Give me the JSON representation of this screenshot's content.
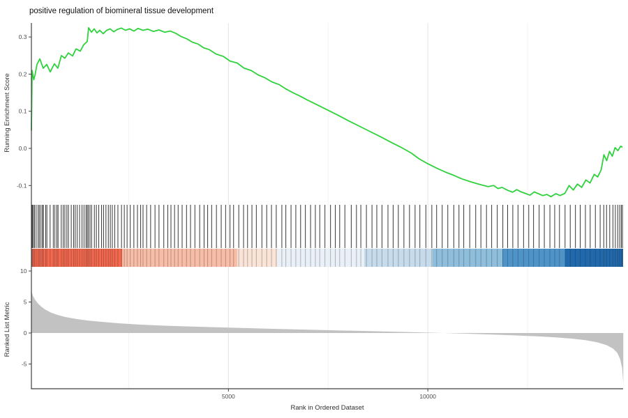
{
  "page": {
    "background": "#ffffff"
  },
  "chart_data": {
    "type": "line",
    "variant": "gsea-enrichment-plot",
    "title": "positive regulation of biomineral tissue development",
    "xlabel": "Rank in Ordered Dataset",
    "xlim": [
      0,
      14900
    ],
    "xticks": [
      {
        "value": 5000,
        "label": "5000"
      },
      {
        "value": 10000,
        "label": "10000"
      }
    ],
    "major_gridlines": [
      5000,
      10000
    ],
    "minor_gridlines": [
      2500,
      7500,
      12500
    ],
    "grid_major_color": "#e4e4e4",
    "grid_minor_color": "#f2f2f2",
    "axis_color": "#3f3f3f",
    "panels": {
      "running_score": {
        "ylabel": "Running Enrichment Score",
        "ylim": [
          -0.15,
          0.35
        ],
        "yticks": [
          {
            "value": 0.3,
            "label": "0.3"
          },
          {
            "value": 0.2,
            "label": "0.2"
          },
          {
            "value": 0.1,
            "label": "0.1"
          },
          {
            "value": 0.0,
            "label": "0.0"
          },
          {
            "value": -0.1,
            "label": "-0.1"
          }
        ],
        "line_color": "#2fd13d",
        "points": [
          [
            61,
            0.048
          ],
          [
            79,
            0.21
          ],
          [
            120,
            0.185
          ],
          [
            149,
            0.196
          ],
          [
            201,
            0.226
          ],
          [
            271,
            0.241
          ],
          [
            358,
            0.216
          ],
          [
            446,
            0.226
          ],
          [
            533,
            0.206
          ],
          [
            638,
            0.228
          ],
          [
            725,
            0.216
          ],
          [
            813,
            0.25
          ],
          [
            900,
            0.243
          ],
          [
            988,
            0.257
          ],
          [
            1093,
            0.249
          ],
          [
            1180,
            0.268
          ],
          [
            1285,
            0.262
          ],
          [
            1372,
            0.279
          ],
          [
            1460,
            0.288
          ],
          [
            1495,
            0.325
          ],
          [
            1565,
            0.313
          ],
          [
            1635,
            0.322
          ],
          [
            1705,
            0.311
          ],
          [
            1774,
            0.318
          ],
          [
            1862,
            0.309
          ],
          [
            1949,
            0.318
          ],
          [
            2037,
            0.322
          ],
          [
            2124,
            0.314
          ],
          [
            2211,
            0.32
          ],
          [
            2316,
            0.324
          ],
          [
            2421,
            0.318
          ],
          [
            2526,
            0.322
          ],
          [
            2631,
            0.316
          ],
          [
            2736,
            0.323
          ],
          [
            2858,
            0.318
          ],
          [
            2980,
            0.321
          ],
          [
            3120,
            0.315
          ],
          [
            3260,
            0.319
          ],
          [
            3400,
            0.313
          ],
          [
            3540,
            0.316
          ],
          [
            3680,
            0.31
          ],
          [
            3820,
            0.301
          ],
          [
            3960,
            0.295
          ],
          [
            4100,
            0.286
          ],
          [
            4240,
            0.281
          ],
          [
            4380,
            0.271
          ],
          [
            4520,
            0.266
          ],
          [
            4694,
            0.254
          ],
          [
            4869,
            0.248
          ],
          [
            5044,
            0.235
          ],
          [
            5219,
            0.23
          ],
          [
            5394,
            0.216
          ],
          [
            5569,
            0.21
          ],
          [
            5744,
            0.198
          ],
          [
            5918,
            0.19
          ],
          [
            6093,
            0.179
          ],
          [
            6268,
            0.172
          ],
          [
            6443,
            0.16
          ],
          [
            6618,
            0.15
          ],
          [
            6793,
            0.141
          ],
          [
            6967,
            0.131
          ],
          [
            7230,
            0.117
          ],
          [
            7492,
            0.103
          ],
          [
            7754,
            0.089
          ],
          [
            8017,
            0.074
          ],
          [
            8279,
            0.06
          ],
          [
            8541,
            0.046
          ],
          [
            8803,
            0.032
          ],
          [
            9066,
            0.017
          ],
          [
            9328,
            0.003
          ],
          [
            9590,
            -0.013
          ],
          [
            9765,
            -0.027
          ],
          [
            9975,
            -0.04
          ],
          [
            10237,
            -0.054
          ],
          [
            10464,
            -0.065
          ],
          [
            10639,
            -0.072
          ],
          [
            10849,
            -0.082
          ],
          [
            11076,
            -0.09
          ],
          [
            11303,
            -0.097
          ],
          [
            11513,
            -0.103
          ],
          [
            11653,
            -0.1
          ],
          [
            11758,
            -0.108
          ],
          [
            11862,
            -0.105
          ],
          [
            12002,
            -0.113
          ],
          [
            12125,
            -0.118
          ],
          [
            12230,
            -0.111
          ],
          [
            12334,
            -0.117
          ],
          [
            12439,
            -0.121
          ],
          [
            12562,
            -0.126
          ],
          [
            12667,
            -0.117
          ],
          [
            12772,
            -0.122
          ],
          [
            12877,
            -0.127
          ],
          [
            12981,
            -0.124
          ],
          [
            13086,
            -0.13
          ],
          [
            13209,
            -0.122
          ],
          [
            13314,
            -0.127
          ],
          [
            13436,
            -0.121
          ],
          [
            13541,
            -0.1
          ],
          [
            13646,
            -0.112
          ],
          [
            13751,
            -0.096
          ],
          [
            13856,
            -0.105
          ],
          [
            13961,
            -0.085
          ],
          [
            14066,
            -0.093
          ],
          [
            14171,
            -0.07
          ],
          [
            14258,
            -0.077
          ],
          [
            14345,
            -0.058
          ],
          [
            14415,
            -0.017
          ],
          [
            14485,
            -0.033
          ],
          [
            14555,
            -0.008
          ],
          [
            14625,
            -0.021
          ],
          [
            14695,
            0.002
          ],
          [
            14765,
            -0.006
          ],
          [
            14835,
            0.006
          ],
          [
            14880,
            0.003
          ]
        ]
      },
      "hits": {
        "color": "#1a1a1a",
        "ranks": [
          70,
          90,
          110,
          140,
          180,
          230,
          260,
          300,
          340,
          360,
          420,
          450,
          530,
          610,
          650,
          700,
          730,
          810,
          860,
          900,
          950,
          990,
          1060,
          1120,
          1160,
          1210,
          1270,
          1330,
          1380,
          1430,
          1460,
          1490,
          1530,
          1570,
          1640,
          1690,
          1750,
          1820,
          1870,
          1930,
          1990,
          2040,
          2090,
          2150,
          2230,
          2320,
          2390,
          2460,
          2540,
          2630,
          2720,
          2800,
          2860,
          2950,
          3050,
          3160,
          3260,
          3380,
          3480,
          3560,
          3650,
          3740,
          3840,
          3950,
          4050,
          4160,
          4280,
          4390,
          4480,
          4580,
          4700,
          4820,
          4930,
          5040,
          5130,
          5260,
          5380,
          5480,
          5590,
          5700,
          5840,
          5960,
          6080,
          6200,
          6340,
          6440,
          6570,
          6690,
          6810,
          6930,
          7060,
          7180,
          7290,
          7420,
          7560,
          7680,
          7790,
          7920,
          8080,
          8210,
          8320,
          8460,
          8600,
          8720,
          8850,
          9000,
          9130,
          9260,
          9400,
          9540,
          9680,
          9800,
          9950,
          10100,
          10220,
          10360,
          10500,
          10650,
          10780,
          10900,
          11050,
          11200,
          11330,
          11470,
          11600,
          11740,
          11880,
          12000,
          12130,
          12260,
          12400,
          12530,
          12650,
          12790,
          12920,
          13060,
          13180,
          13300,
          13440,
          13570,
          13700,
          13820,
          13950,
          14070,
          14200,
          14320,
          14410,
          14480,
          14560,
          14640,
          14700,
          14760,
          14810,
          14850,
          14880
        ]
      },
      "rank_band": {
        "segments": [
          {
            "from": 61,
            "to": 2335,
            "color": "#f4684e"
          },
          {
            "from": 2335,
            "to": 5221,
            "color": "#f8bda7"
          },
          {
            "from": 5221,
            "to": 6218,
            "color": "#fae3d7"
          },
          {
            "from": 6218,
            "to": 8405,
            "color": "#e9f0f8"
          },
          {
            "from": 8405,
            "to": 10120,
            "color": "#c6dbec"
          },
          {
            "from": 10120,
            "to": 11869,
            "color": "#8fbedd"
          },
          {
            "from": 11869,
            "to": 13443,
            "color": "#4f94c9"
          },
          {
            "from": 13443,
            "to": 14895,
            "color": "#2169ad"
          }
        ]
      },
      "ranked_metric": {
        "ylabel": "Ranked List Metric",
        "ylim": [
          -9,
          11
        ],
        "yticks": [
          {
            "value": 10,
            "label": "10"
          },
          {
            "value": 5,
            "label": "5"
          },
          {
            "value": 0,
            "label": "0"
          },
          {
            "value": -5,
            "label": "-5"
          }
        ],
        "fill_color": "#c2c2c2",
        "points": [
          [
            60,
            6.8
          ],
          [
            100,
            6.0
          ],
          [
            150,
            5.4
          ],
          [
            220,
            4.8
          ],
          [
            300,
            4.3
          ],
          [
            400,
            3.8
          ],
          [
            550,
            3.3
          ],
          [
            700,
            2.95
          ],
          [
            900,
            2.6
          ],
          [
            1200,
            2.25
          ],
          [
            1500,
            2.0
          ],
          [
            1900,
            1.75
          ],
          [
            2300,
            1.55
          ],
          [
            2800,
            1.35
          ],
          [
            3400,
            1.18
          ],
          [
            4000,
            1.05
          ],
          [
            4700,
            0.92
          ],
          [
            5500,
            0.78
          ],
          [
            6300,
            0.65
          ],
          [
            7100,
            0.52
          ],
          [
            7900,
            0.4
          ],
          [
            8700,
            0.28
          ],
          [
            9400,
            0.17
          ],
          [
            10000,
            0.07
          ],
          [
            10400,
            0.0
          ],
          [
            10900,
            -0.1
          ],
          [
            11500,
            -0.22
          ],
          [
            12100,
            -0.36
          ],
          [
            12700,
            -0.52
          ],
          [
            13200,
            -0.7
          ],
          [
            13600,
            -0.9
          ],
          [
            13950,
            -1.15
          ],
          [
            14250,
            -1.5
          ],
          [
            14480,
            -1.95
          ],
          [
            14640,
            -2.5
          ],
          [
            14750,
            -3.2
          ],
          [
            14820,
            -4.2
          ],
          [
            14870,
            -5.6
          ],
          [
            14900,
            -8.2
          ]
        ]
      }
    }
  }
}
